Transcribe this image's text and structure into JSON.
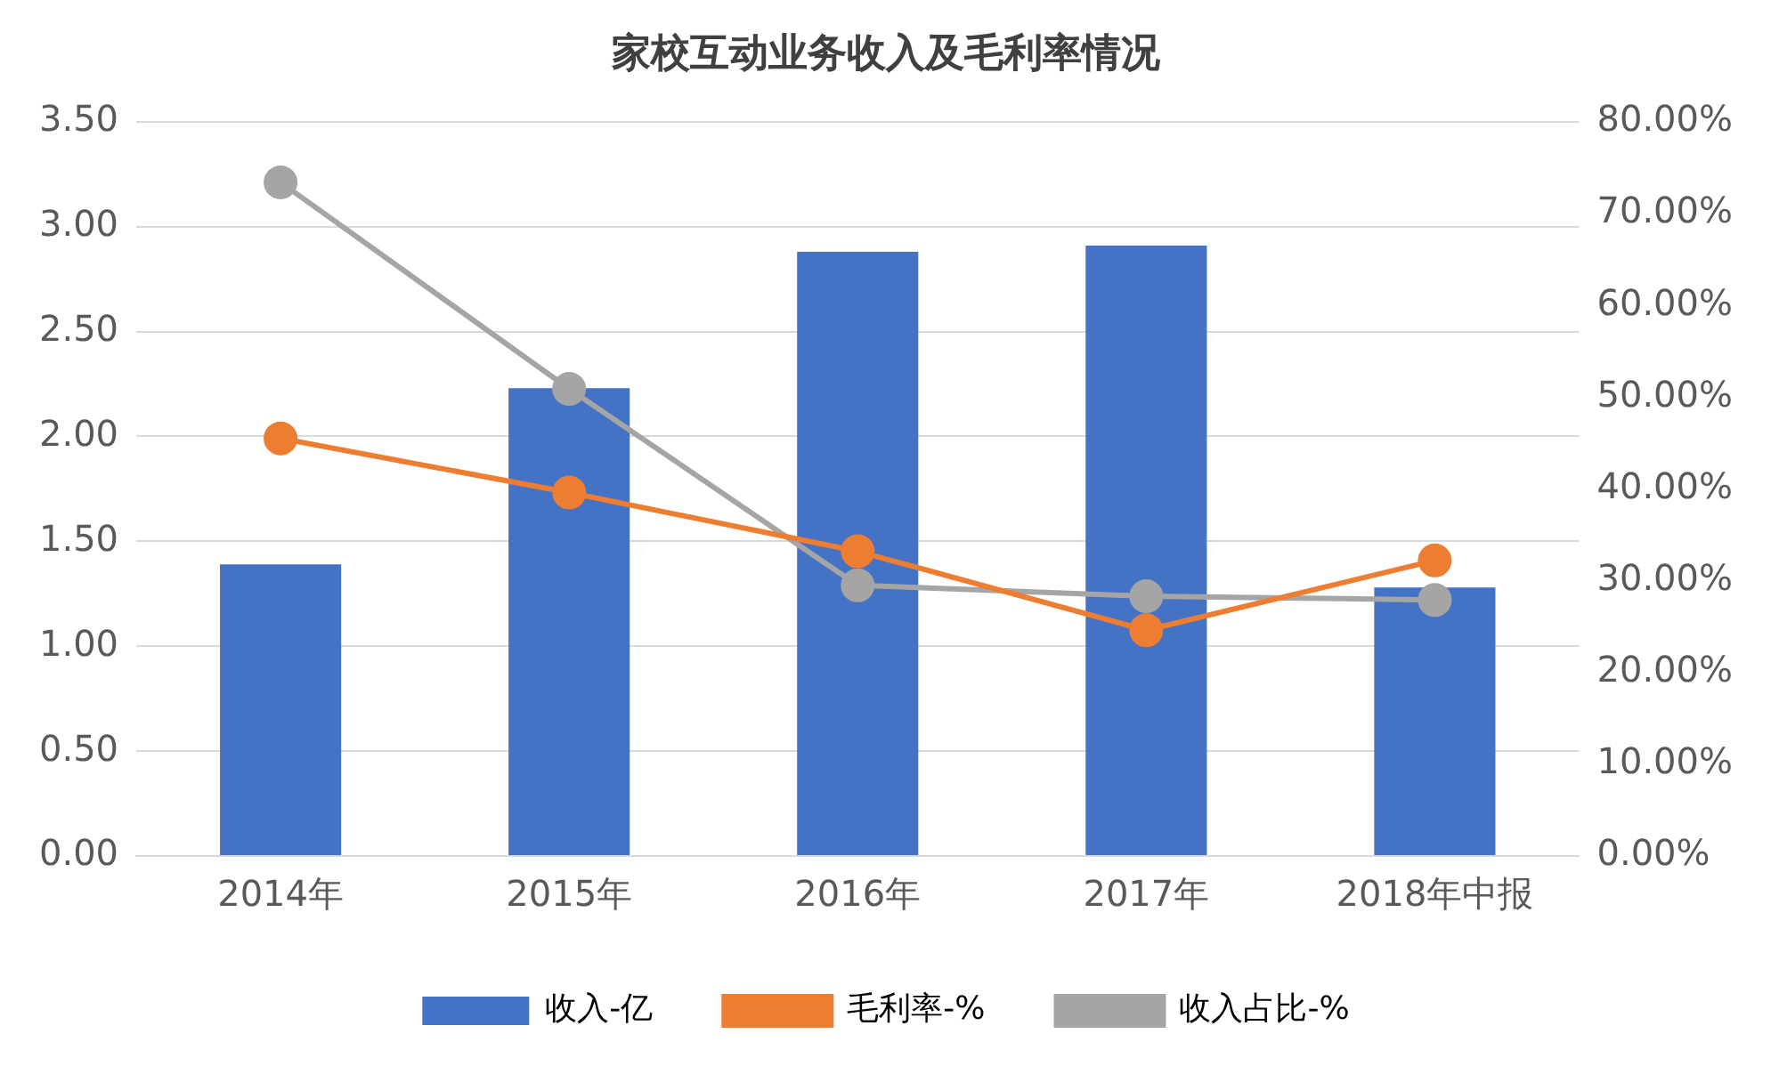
{
  "chart_data": {
    "type": "bar",
    "title": "家校互动业务收入及毛利率情况",
    "categories": [
      "2014年",
      "2015年",
      "2016年",
      "2017年",
      "2018年中报"
    ],
    "series": [
      {
        "name": "收入-亿",
        "color": "#4472c4",
        "values": [
          1.39,
          2.23,
          2.88,
          2.91,
          1.28
        ]
      },
      {
        "name": "毛利率-%",
        "type": "line",
        "axis": "y2",
        "color": "#ed7d31",
        "values": [
          45.5,
          39.6,
          33.2,
          24.6,
          32.2
        ]
      },
      {
        "name": "收入占比-%",
        "type": "line",
        "axis": "y2",
        "color": "#a5a5a5",
        "values": [
          73.4,
          50.9,
          29.5,
          28.3,
          27.9
        ]
      }
    ],
    "ylim": [
      0,
      3.5
    ],
    "yticks": [
      {
        "value": 0,
        "label": "0.00"
      },
      {
        "value": 0.5,
        "label": "0.50"
      },
      {
        "value": 1,
        "label": "1.00"
      },
      {
        "value": 1.5,
        "label": "1.50"
      },
      {
        "value": 2,
        "label": "2.00"
      },
      {
        "value": 2.5,
        "label": "2.50"
      },
      {
        "value": 3,
        "label": "3.00"
      },
      {
        "value": 3.5,
        "label": "3.50"
      }
    ],
    "y2lim": [
      0,
      80
    ],
    "y2ticks": [
      {
        "value": 0,
        "label": "0.00%"
      },
      {
        "value": 10,
        "label": "10.00%"
      },
      {
        "value": 20,
        "label": "20.00%"
      },
      {
        "value": 30,
        "label": "30.00%"
      },
      {
        "value": 40,
        "label": "40.00%"
      },
      {
        "value": 50,
        "label": "50.00%"
      },
      {
        "value": 60,
        "label": "60.00%"
      },
      {
        "value": 70,
        "label": "70.00%"
      },
      {
        "value": 80,
        "label": "80.00%"
      }
    ],
    "grid": "y",
    "legend": "bottom",
    "marker": "circle",
    "line_style": "solid"
  }
}
